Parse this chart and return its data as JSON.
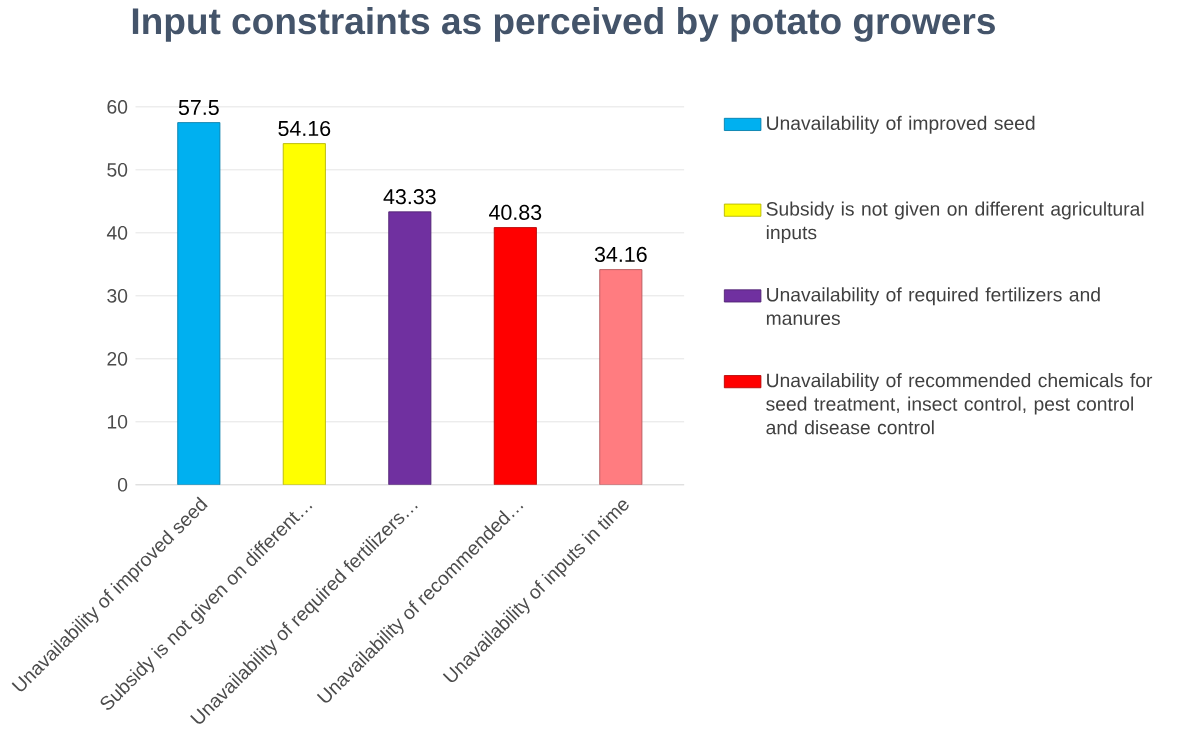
{
  "chart_data": {
    "type": "bar",
    "title": "Input constraints as perceived by potato growers",
    "categories": [
      "Unavailability of improved seed",
      "Subsidy is not given on different…",
      "Unavailability of required fertilizers…",
      "Unavailability of recommended…",
      "Unavailability of inputs in time"
    ],
    "series": [
      {
        "name": "Unavailability of improved seed",
        "color": "#00b0f0",
        "values": [
          57.5,
          null,
          null,
          null,
          null
        ]
      },
      {
        "name": "Subsidy is not given on different agricultural inputs",
        "color": "#ffff00",
        "values": [
          null,
          54.16,
          null,
          null,
          null
        ]
      },
      {
        "name": "Unavailability of required fertilizers and manures",
        "color": "#7030a0",
        "values": [
          null,
          null,
          43.33,
          null,
          null
        ]
      },
      {
        "name": "Unavailability of recommended chemicals for seed treatment, insect control, pest control and disease control",
        "color": "#ff0000",
        "values": [
          null,
          null,
          null,
          40.83,
          null
        ]
      },
      {
        "color": "#ff7c80",
        "values": [
          null,
          null,
          null,
          null,
          34.16
        ]
      }
    ],
    "ylim": [
      0,
      60
    ],
    "yticks": [
      0,
      10,
      20,
      30,
      40,
      50,
      60
    ],
    "grid": "y",
    "legend": "right",
    "data_labels": true
  }
}
